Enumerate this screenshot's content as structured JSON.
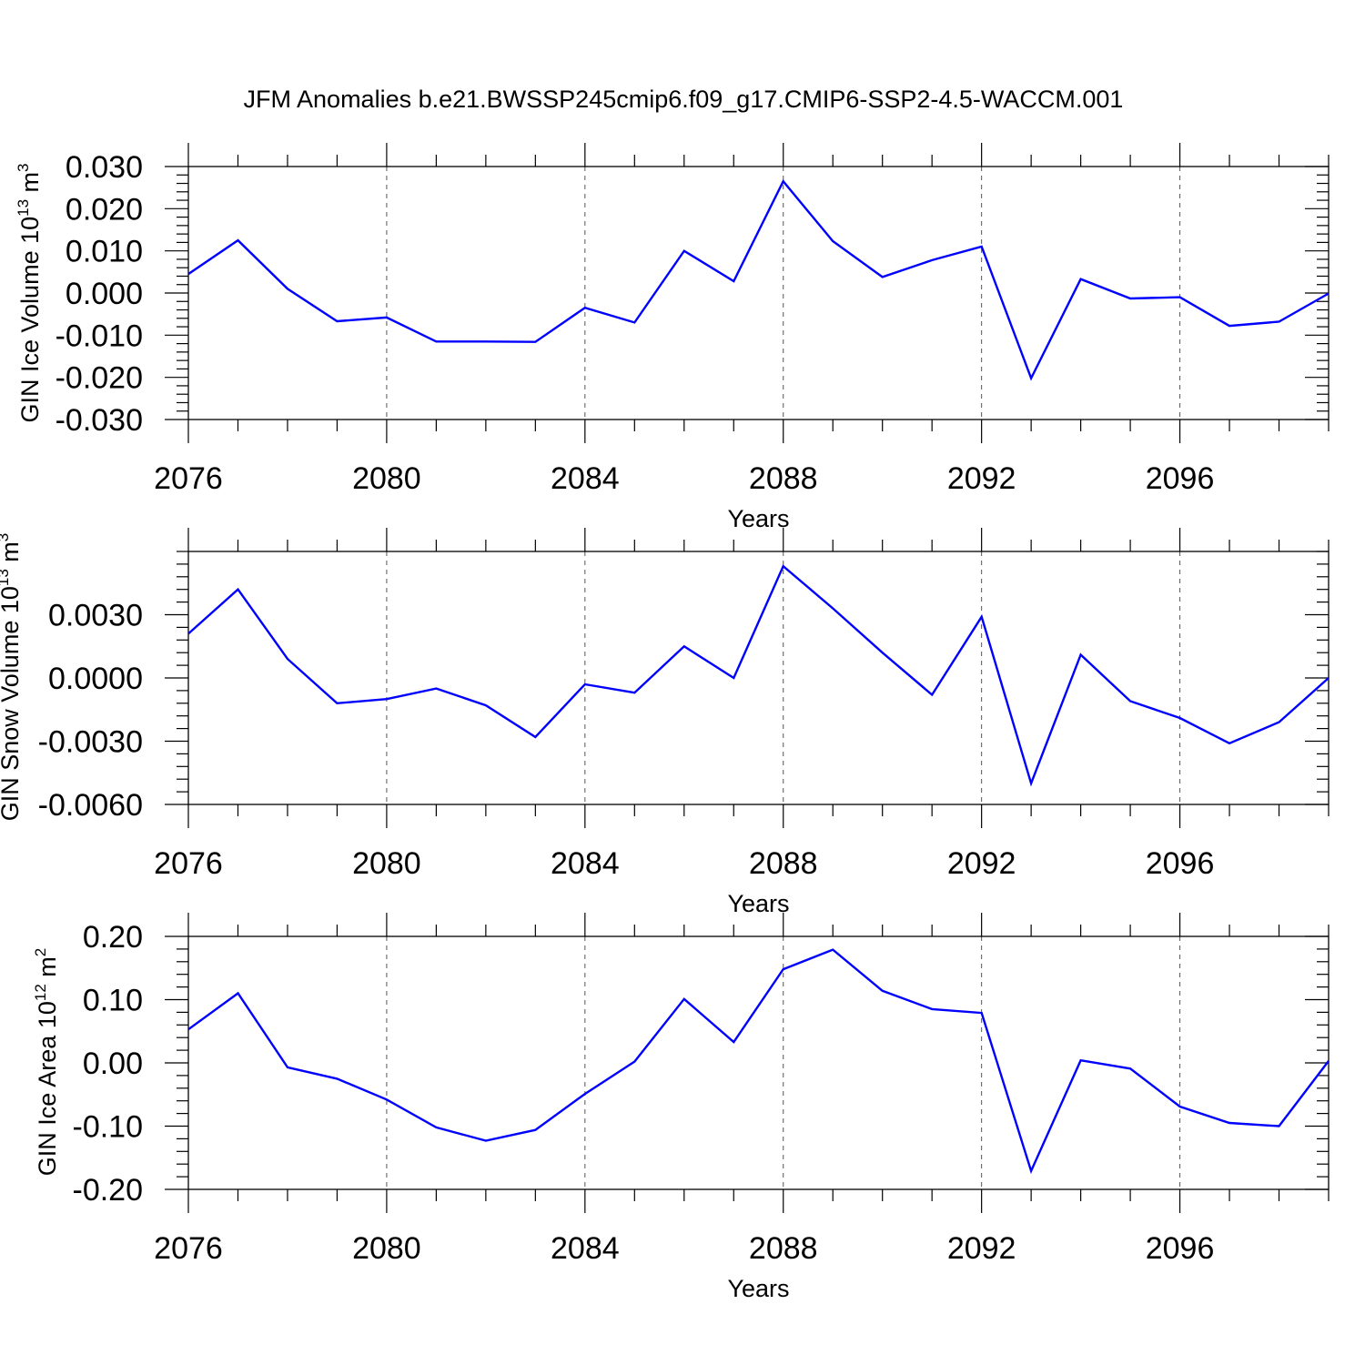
{
  "title": "JFM Anomalies b.e21.BWSSP245cmip6.f09_g17.CMIP6-SSP2-4.5-WACCM.001",
  "colors": {
    "series": "#0000ff",
    "axis": "#000000",
    "grid": "#555555"
  },
  "chart_data": [
    {
      "type": "line",
      "ylabel": {
        "text": "GIN Ice Volume 10",
        "exp": "13",
        "unit": " m",
        "unit_exp": "3"
      },
      "xlabel": "Years",
      "xlim": [
        2076,
        2099
      ],
      "ylim": [
        -0.03,
        0.03
      ],
      "yticks": [
        -0.03,
        -0.02,
        -0.01,
        0.0,
        0.01,
        0.02,
        0.03
      ],
      "ytick_labels": [
        "-0.030",
        "-0.020",
        "-0.010",
        "0.000",
        "0.010",
        "0.020",
        "0.030"
      ],
      "xticks": [
        2076,
        2080,
        2084,
        2088,
        2092,
        2096
      ],
      "xtick_labels": [
        "2076",
        "2080",
        "2084",
        "2088",
        "2092",
        "2096"
      ],
      "grid": "vertical dashed at labeled x ticks",
      "series": [
        {
          "x": [
            2076,
            2077,
            2078,
            2079,
            2080,
            2081,
            2082,
            2083,
            2084,
            2085,
            2086,
            2087,
            2088,
            2089,
            2090,
            2091,
            2092,
            2093,
            2094,
            2095,
            2096,
            2097,
            2098,
            2099
          ],
          "values": [
            0.0045,
            0.0125,
            0.001,
            -0.0067,
            -0.0058,
            -0.0115,
            -0.0115,
            -0.0116,
            -0.0035,
            -0.007,
            0.01,
            0.0028,
            0.0265,
            0.0123,
            0.0038,
            0.0078,
            0.011,
            -0.0202,
            0.0033,
            -0.0013,
            -0.001,
            -0.0078,
            -0.0068,
            -0.0001
          ]
        }
      ]
    },
    {
      "type": "line",
      "ylabel": {
        "text": "GIN Snow Volume 10",
        "exp": "13",
        "unit": " m",
        "unit_exp": "3"
      },
      "xlabel": "Years",
      "xlim": [
        2076,
        2099
      ],
      "ylim": [
        -0.006,
        0.006
      ],
      "yticks": [
        -0.006,
        -0.003,
        0.0,
        0.003
      ],
      "ytick_labels": [
        "-0.0060",
        "-0.0030",
        "0.0000",
        "0.0030"
      ],
      "xticks": [
        2076,
        2080,
        2084,
        2088,
        2092,
        2096
      ],
      "xtick_labels": [
        "2076",
        "2080",
        "2084",
        "2088",
        "2092",
        "2096"
      ],
      "grid": "vertical dashed at labeled x ticks",
      "series": [
        {
          "x": [
            2076,
            2077,
            2078,
            2079,
            2080,
            2081,
            2082,
            2083,
            2084,
            2085,
            2086,
            2087,
            2088,
            2089,
            2090,
            2091,
            2092,
            2093,
            2094,
            2095,
            2096,
            2097,
            2098,
            2099
          ],
          "values": [
            0.0021,
            0.0042,
            0.0009,
            -0.0012,
            -0.001,
            -0.0005,
            -0.0013,
            -0.0028,
            -0.0003,
            -0.0007,
            0.0015,
            0.0,
            0.0053,
            0.0033,
            0.0012,
            -0.0008,
            0.0029,
            -0.005,
            0.0011,
            -0.0011,
            -0.0019,
            -0.0031,
            -0.0021,
            0.0
          ]
        }
      ]
    },
    {
      "type": "line",
      "ylabel": {
        "text": "GIN Ice Area 10",
        "exp": "12",
        "unit": " m",
        "unit_exp": "2"
      },
      "xlabel": "Years",
      "xlim": [
        2076,
        2099
      ],
      "ylim": [
        -0.2,
        0.2
      ],
      "yticks": [
        -0.2,
        -0.1,
        0.0,
        0.1,
        0.2
      ],
      "ytick_labels": [
        "-0.20",
        "-0.10",
        "0.00",
        "0.10",
        "0.20"
      ],
      "xticks": [
        2076,
        2080,
        2084,
        2088,
        2092,
        2096
      ],
      "xtick_labels": [
        "2076",
        "2080",
        "2084",
        "2088",
        "2092",
        "2096"
      ],
      "grid": "vertical dashed at labeled x ticks",
      "series": [
        {
          "x": [
            2076,
            2077,
            2078,
            2079,
            2080,
            2081,
            2082,
            2083,
            2084,
            2085,
            2086,
            2087,
            2088,
            2089,
            2090,
            2091,
            2092,
            2093,
            2094,
            2095,
            2096,
            2097,
            2098,
            2099
          ],
          "values": [
            0.053,
            0.11,
            -0.007,
            -0.025,
            -0.058,
            -0.102,
            -0.123,
            -0.106,
            -0.049,
            0.002,
            0.101,
            0.033,
            0.148,
            0.179,
            0.114,
            0.085,
            0.079,
            -0.171,
            0.004,
            -0.009,
            -0.069,
            -0.095,
            -0.1,
            0.003
          ]
        }
      ]
    }
  ]
}
